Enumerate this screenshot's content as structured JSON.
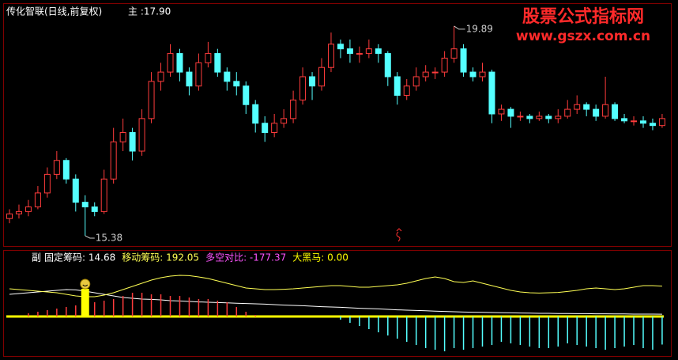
{
  "chart_data": [
    {
      "type": "candlestick",
      "title": "传化智联(日线,前复权)",
      "subtitle": "主 :17.90",
      "watermark": [
        "股票公式指标网",
        "www.gszx.com.cn"
      ],
      "up_color": "#ff3c3c",
      "down_color": "#54ffff",
      "ylim": [
        15.26,
        20.28
      ],
      "high_index": 47,
      "low_index": 8,
      "open": [
        15.75,
        15.85,
        15.9,
        16.0,
        16.3,
        16.7,
        17.0,
        16.6,
        16.1,
        16.0,
        15.9,
        16.6,
        17.4,
        17.6,
        17.2,
        17.9,
        18.7,
        18.9,
        19.3,
        18.9,
        18.6,
        19.1,
        19.3,
        18.9,
        18.7,
        18.6,
        18.2,
        17.8,
        17.6,
        17.8,
        17.9,
        18.3,
        18.8,
        18.6,
        19.0,
        19.5,
        19.4,
        19.3,
        19.3,
        19.4,
        19.3,
        18.8,
        18.4,
        18.6,
        18.8,
        18.9,
        18.9,
        19.2,
        19.4,
        18.9,
        18.8,
        18.9,
        18.0,
        18.1,
        17.95,
        17.95,
        17.9,
        17.95,
        17.9,
        17.95,
        18.1,
        18.2,
        18.1,
        17.95,
        18.2,
        17.9,
        17.85,
        17.85,
        17.8,
        17.75
      ],
      "high": [
        15.95,
        16.05,
        16.15,
        16.45,
        16.85,
        17.2,
        17.05,
        16.7,
        16.25,
        16.1,
        16.8,
        17.7,
        17.9,
        17.7,
        18.1,
        18.9,
        19.1,
        19.5,
        19.4,
        19.0,
        19.3,
        19.55,
        19.4,
        19.0,
        18.9,
        18.7,
        18.3,
        17.95,
        18.0,
        18.1,
        18.5,
        19.0,
        18.9,
        19.2,
        19.75,
        19.6,
        19.6,
        19.45,
        19.6,
        19.5,
        19.35,
        18.9,
        18.75,
        19.0,
        19.05,
        19.0,
        19.35,
        19.89,
        19.5,
        19.0,
        19.1,
        18.95,
        18.2,
        18.15,
        18.05,
        18.0,
        18.05,
        18.0,
        18.1,
        18.3,
        18.4,
        18.25,
        18.2,
        18.8,
        18.25,
        18.0,
        17.95,
        17.95,
        17.9,
        18.0
      ],
      "low": [
        15.65,
        15.75,
        15.8,
        15.95,
        16.2,
        16.6,
        16.5,
        15.9,
        15.38,
        15.8,
        15.85,
        16.5,
        17.2,
        17.0,
        17.1,
        17.8,
        18.5,
        18.8,
        18.7,
        18.4,
        18.5,
        19.0,
        18.8,
        18.5,
        18.4,
        18.0,
        17.6,
        17.4,
        17.5,
        17.7,
        17.8,
        18.2,
        18.3,
        18.5,
        18.9,
        19.2,
        19.1,
        19.1,
        19.2,
        19.1,
        18.6,
        18.2,
        18.3,
        18.5,
        18.7,
        18.75,
        18.8,
        19.1,
        18.8,
        18.7,
        18.7,
        17.8,
        17.85,
        17.7,
        17.85,
        17.8,
        17.85,
        17.8,
        17.8,
        17.9,
        18.0,
        17.95,
        17.85,
        17.9,
        17.85,
        17.8,
        17.75,
        17.7,
        17.65,
        17.7
      ],
      "close": [
        15.85,
        15.9,
        16.0,
        16.3,
        16.7,
        17.0,
        16.6,
        16.1,
        16.0,
        15.9,
        16.6,
        17.4,
        17.6,
        17.2,
        17.9,
        18.7,
        18.9,
        19.3,
        18.9,
        18.6,
        19.1,
        19.3,
        18.9,
        18.7,
        18.6,
        18.2,
        17.8,
        17.6,
        17.8,
        17.9,
        18.3,
        18.8,
        18.6,
        19.0,
        19.5,
        19.4,
        19.3,
        19.3,
        19.4,
        19.3,
        18.8,
        18.4,
        18.6,
        18.8,
        18.9,
        18.9,
        19.2,
        19.4,
        18.9,
        18.8,
        18.9,
        18.0,
        18.1,
        17.95,
        17.95,
        17.9,
        17.95,
        17.9,
        17.95,
        18.1,
        18.2,
        18.1,
        17.95,
        18.2,
        17.9,
        17.85,
        17.85,
        17.8,
        17.75,
        17.9
      ]
    },
    {
      "type": "indicator",
      "title": "副",
      "ylim": [
        -240,
        325
      ],
      "series": [
        {
          "legend_text": "固定筹码: 14.68",
          "kind": "line",
          "color": "#ffffff",
          "values": [
            140,
            145,
            150,
            155,
            160,
            165,
            170,
            168,
            160,
            150,
            140,
            130,
            120,
            115,
            110,
            108,
            105,
            100,
            98,
            95,
            92,
            90,
            88,
            86,
            84,
            82,
            80,
            78,
            75,
            72,
            70,
            68,
            65,
            62,
            60,
            58,
            55,
            52,
            50,
            48,
            45,
            42,
            40,
            38,
            36,
            34,
            32,
            30,
            28,
            27,
            26,
            25,
            24,
            23,
            22,
            21,
            20,
            20,
            19,
            19,
            18,
            18,
            17,
            17,
            16,
            16,
            15,
            15,
            15,
            14.68
          ]
        },
        {
          "legend_text": "移动筹码: 192.05",
          "kind": "line",
          "color": "#ffff54",
          "values": [
            175,
            170,
            165,
            160,
            155,
            150,
            140,
            130,
            125,
            125,
            135,
            150,
            170,
            190,
            210,
            230,
            245,
            255,
            260,
            258,
            250,
            240,
            225,
            210,
            195,
            180,
            175,
            170,
            170,
            172,
            175,
            180,
            185,
            190,
            195,
            195,
            190,
            185,
            185,
            190,
            195,
            200,
            210,
            225,
            240,
            250,
            240,
            220,
            215,
            225,
            210,
            195,
            180,
            165,
            155,
            150,
            148,
            150,
            152,
            158,
            165,
            175,
            180,
            175,
            170,
            175,
            185,
            195,
            195,
            192.05
          ]
        },
        {
          "legend_text": "多空对比: -177.37",
          "kind": "histogram",
          "color": "#ff54ff",
          "up_color": "#ff3c3c",
          "down_color": "#54ffff",
          "values": [
            0,
            0,
            20,
            30,
            40,
            50,
            60,
            70,
            80,
            90,
            100,
            110,
            130,
            150,
            150,
            140,
            140,
            130,
            130,
            120,
            110,
            110,
            100,
            90,
            60,
            30,
            10,
            0,
            0,
            0,
            0,
            0,
            0,
            0,
            0,
            -20,
            -40,
            -60,
            -80,
            -100,
            -120,
            -140,
            -160,
            -180,
            -200,
            -210,
            -220,
            -200,
            -210,
            -200,
            -190,
            -180,
            -160,
            -170,
            -180,
            -190,
            -200,
            -200,
            -190,
            -170,
            -180,
            -190,
            -200,
            -210,
            -200,
            -190,
            -180,
            -200,
            -210,
            -177.37
          ]
        },
        {
          "legend_text": "大黑马: 0.00",
          "kind": "signal",
          "color": "#ffff00",
          "values": [
            0,
            0,
            0,
            0,
            0,
            0,
            0,
            0,
            175,
            0,
            0,
            0,
            0,
            0,
            0,
            0,
            0,
            0,
            0,
            0,
            0,
            0,
            0,
            0,
            0,
            0,
            0,
            0,
            0,
            0,
            0,
            0,
            0,
            0,
            0,
            0,
            0,
            0,
            0,
            0,
            0,
            0,
            0,
            0,
            0,
            0,
            0,
            0,
            0,
            0,
            0,
            0,
            0,
            0,
            0,
            0,
            0,
            0,
            0,
            0,
            0,
            0,
            0,
            0,
            0,
            0,
            0,
            0,
            0,
            0
          ]
        }
      ]
    }
  ]
}
